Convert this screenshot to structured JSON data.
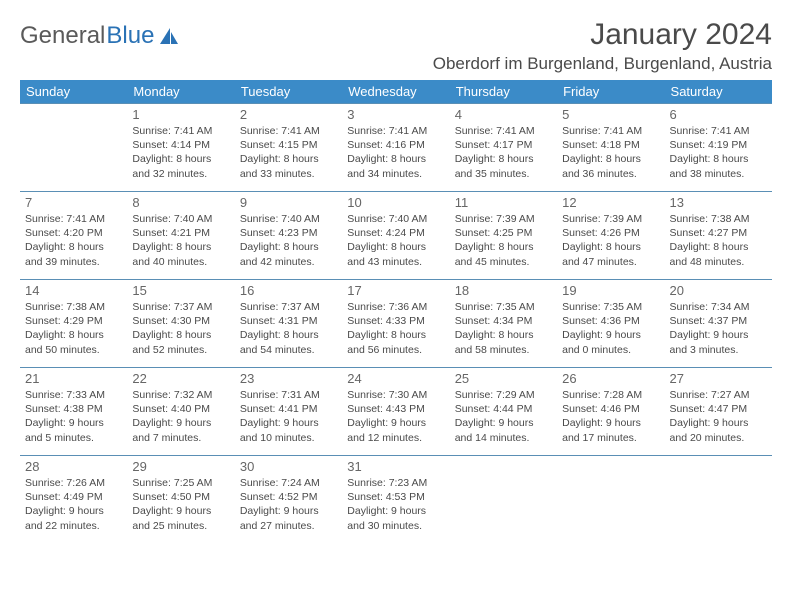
{
  "logo": {
    "text1": "General",
    "text2": "Blue"
  },
  "title": "January 2024",
  "location": "Oberdorf im Burgenland, Burgenland, Austria",
  "colors": {
    "header_bg": "#3b8bc8",
    "header_text": "#ffffff",
    "border": "#5a8fb5",
    "body_text": "#4a4a4a",
    "daynum": "#666666",
    "logo_gray": "#5a5a5a",
    "logo_blue": "#2a72b5"
  },
  "dayNames": [
    "Sunday",
    "Monday",
    "Tuesday",
    "Wednesday",
    "Thursday",
    "Friday",
    "Saturday"
  ],
  "weeks": [
    [
      null,
      {
        "n": "1",
        "sr": "7:41 AM",
        "ss": "4:14 PM",
        "dl": "8 hours and 32 minutes."
      },
      {
        "n": "2",
        "sr": "7:41 AM",
        "ss": "4:15 PM",
        "dl": "8 hours and 33 minutes."
      },
      {
        "n": "3",
        "sr": "7:41 AM",
        "ss": "4:16 PM",
        "dl": "8 hours and 34 minutes."
      },
      {
        "n": "4",
        "sr": "7:41 AM",
        "ss": "4:17 PM",
        "dl": "8 hours and 35 minutes."
      },
      {
        "n": "5",
        "sr": "7:41 AM",
        "ss": "4:18 PM",
        "dl": "8 hours and 36 minutes."
      },
      {
        "n": "6",
        "sr": "7:41 AM",
        "ss": "4:19 PM",
        "dl": "8 hours and 38 minutes."
      }
    ],
    [
      {
        "n": "7",
        "sr": "7:41 AM",
        "ss": "4:20 PM",
        "dl": "8 hours and 39 minutes."
      },
      {
        "n": "8",
        "sr": "7:40 AM",
        "ss": "4:21 PM",
        "dl": "8 hours and 40 minutes."
      },
      {
        "n": "9",
        "sr": "7:40 AM",
        "ss": "4:23 PM",
        "dl": "8 hours and 42 minutes."
      },
      {
        "n": "10",
        "sr": "7:40 AM",
        "ss": "4:24 PM",
        "dl": "8 hours and 43 minutes."
      },
      {
        "n": "11",
        "sr": "7:39 AM",
        "ss": "4:25 PM",
        "dl": "8 hours and 45 minutes."
      },
      {
        "n": "12",
        "sr": "7:39 AM",
        "ss": "4:26 PM",
        "dl": "8 hours and 47 minutes."
      },
      {
        "n": "13",
        "sr": "7:38 AM",
        "ss": "4:27 PM",
        "dl": "8 hours and 48 minutes."
      }
    ],
    [
      {
        "n": "14",
        "sr": "7:38 AM",
        "ss": "4:29 PM",
        "dl": "8 hours and 50 minutes."
      },
      {
        "n": "15",
        "sr": "7:37 AM",
        "ss": "4:30 PM",
        "dl": "8 hours and 52 minutes."
      },
      {
        "n": "16",
        "sr": "7:37 AM",
        "ss": "4:31 PM",
        "dl": "8 hours and 54 minutes."
      },
      {
        "n": "17",
        "sr": "7:36 AM",
        "ss": "4:33 PM",
        "dl": "8 hours and 56 minutes."
      },
      {
        "n": "18",
        "sr": "7:35 AM",
        "ss": "4:34 PM",
        "dl": "8 hours and 58 minutes."
      },
      {
        "n": "19",
        "sr": "7:35 AM",
        "ss": "4:36 PM",
        "dl": "9 hours and 0 minutes."
      },
      {
        "n": "20",
        "sr": "7:34 AM",
        "ss": "4:37 PM",
        "dl": "9 hours and 3 minutes."
      }
    ],
    [
      {
        "n": "21",
        "sr": "7:33 AM",
        "ss": "4:38 PM",
        "dl": "9 hours and 5 minutes."
      },
      {
        "n": "22",
        "sr": "7:32 AM",
        "ss": "4:40 PM",
        "dl": "9 hours and 7 minutes."
      },
      {
        "n": "23",
        "sr": "7:31 AM",
        "ss": "4:41 PM",
        "dl": "9 hours and 10 minutes."
      },
      {
        "n": "24",
        "sr": "7:30 AM",
        "ss": "4:43 PM",
        "dl": "9 hours and 12 minutes."
      },
      {
        "n": "25",
        "sr": "7:29 AM",
        "ss": "4:44 PM",
        "dl": "9 hours and 14 minutes."
      },
      {
        "n": "26",
        "sr": "7:28 AM",
        "ss": "4:46 PM",
        "dl": "9 hours and 17 minutes."
      },
      {
        "n": "27",
        "sr": "7:27 AM",
        "ss": "4:47 PM",
        "dl": "9 hours and 20 minutes."
      }
    ],
    [
      {
        "n": "28",
        "sr": "7:26 AM",
        "ss": "4:49 PM",
        "dl": "9 hours and 22 minutes."
      },
      {
        "n": "29",
        "sr": "7:25 AM",
        "ss": "4:50 PM",
        "dl": "9 hours and 25 minutes."
      },
      {
        "n": "30",
        "sr": "7:24 AM",
        "ss": "4:52 PM",
        "dl": "9 hours and 27 minutes."
      },
      {
        "n": "31",
        "sr": "7:23 AM",
        "ss": "4:53 PM",
        "dl": "9 hours and 30 minutes."
      },
      null,
      null,
      null
    ]
  ],
  "labels": {
    "sunrise": "Sunrise:",
    "sunset": "Sunset:",
    "daylight": "Daylight:"
  }
}
